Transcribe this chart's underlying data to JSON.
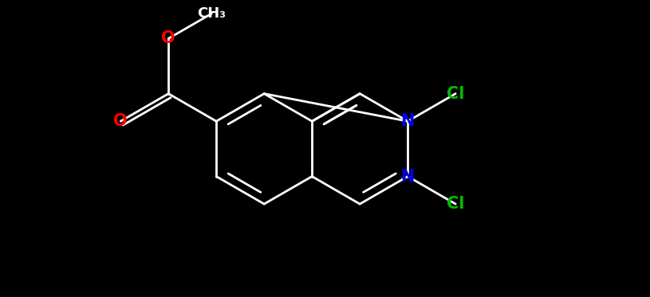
{
  "bg_color": "#000000",
  "bond_color": "#ffffff",
  "atom_colors": {
    "O": "#ff0000",
    "N": "#0000ee",
    "Cl": "#00bb00",
    "C": "#ffffff"
  },
  "bond_width": 2.0,
  "doffset": 0.13,
  "font_size": 15,
  "figsize": [
    8.15,
    3.73
  ],
  "dpi": 100,
  "xlim": [
    0,
    10
  ],
  "ylim": [
    0,
    4.57
  ]
}
